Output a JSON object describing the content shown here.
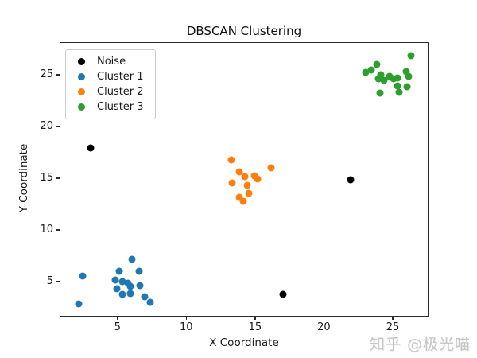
{
  "chart_data": {
    "type": "scatter",
    "title": "DBSCAN Clustering",
    "xlabel": "X Coordinate",
    "ylabel": "Y Coordinate",
    "xlim": [
      0.8,
      27.6
    ],
    "ylim": [
      1.6,
      28.15
    ],
    "xticks": [
      5,
      10,
      15,
      20,
      25
    ],
    "yticks": [
      5,
      10,
      15,
      20,
      25
    ],
    "grid": false,
    "legend_position": "upper left",
    "marker_size_px": 9,
    "series": [
      {
        "name": "Noise",
        "color": "#000000",
        "points": [
          [
            3.0,
            18.0
          ],
          [
            21.9,
            14.9
          ],
          [
            17.0,
            3.8
          ]
        ]
      },
      {
        "name": "Cluster 1",
        "color": "#1f77b4",
        "points": [
          [
            2.4,
            5.6
          ],
          [
            2.1,
            2.9
          ],
          [
            6.0,
            7.2
          ],
          [
            5.1,
            6.1
          ],
          [
            6.5,
            6.1
          ],
          [
            4.8,
            5.2
          ],
          [
            5.3,
            5.1
          ],
          [
            5.7,
            4.9
          ],
          [
            5.9,
            4.6
          ],
          [
            4.9,
            4.4
          ],
          [
            6.6,
            4.7
          ],
          [
            5.3,
            3.8
          ],
          [
            5.9,
            3.9
          ],
          [
            6.9,
            3.6
          ],
          [
            7.3,
            3.1
          ]
        ]
      },
      {
        "name": "Cluster 2",
        "color": "#ff7f0e",
        "points": [
          [
            13.2,
            16.8
          ],
          [
            16.1,
            16.1
          ],
          [
            13.8,
            15.7
          ],
          [
            14.2,
            15.2
          ],
          [
            14.9,
            15.3
          ],
          [
            15.1,
            15.0
          ],
          [
            13.3,
            14.6
          ],
          [
            14.4,
            14.4
          ],
          [
            14.5,
            13.6
          ],
          [
            13.8,
            13.2
          ],
          [
            14.1,
            12.8
          ]
        ]
      },
      {
        "name": "Cluster 3",
        "color": "#2ca02c",
        "points": [
          [
            26.3,
            26.9
          ],
          [
            23.8,
            26.1
          ],
          [
            23.4,
            25.5
          ],
          [
            23.0,
            25.3
          ],
          [
            24.1,
            25.1
          ],
          [
            23.9,
            24.7
          ],
          [
            24.3,
            24.5
          ],
          [
            24.7,
            24.9
          ],
          [
            25.0,
            24.7
          ],
          [
            25.3,
            24.8
          ],
          [
            25.9,
            25.4
          ],
          [
            26.1,
            24.9
          ],
          [
            25.3,
            24.0
          ],
          [
            25.4,
            23.4
          ],
          [
            26.0,
            23.9
          ],
          [
            24.0,
            23.3
          ]
        ]
      }
    ],
    "watermark": "知乎 @极光喵"
  }
}
